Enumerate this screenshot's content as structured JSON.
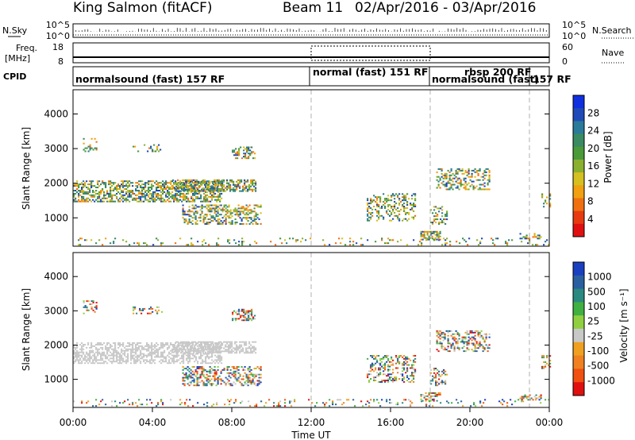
{
  "header": {
    "radar": "King Salmon (fitACF)",
    "beam": "Beam 11",
    "dates": "02/Apr/2016 - 03/Apr/2016"
  },
  "status_panel": {
    "nsky_label": "N.Sky",
    "nsky_ticks": [
      "10^5",
      "10^0"
    ],
    "nsearch_label": "N.Search",
    "nsearch_ticks": [
      "10^5",
      "10^0"
    ],
    "freq_label_1": "Freq.",
    "freq_label_2": "[MHz]",
    "freq_ticks": [
      "18",
      "8"
    ],
    "nave_label": "Nave",
    "nave_ticks": [
      "60",
      "0"
    ],
    "cpid_label": "CPID",
    "modes": [
      {
        "text": "normalsound (fast) 157 RF",
        "start_hour": 0
      },
      {
        "text": "normal (fast) 151 RF",
        "start_hour": 12
      },
      {
        "text": "rbsp 200 RF",
        "start_hour": 18
      },
      {
        "text": "normalsound (fast)",
        "start_hour": 18
      },
      {
        "text": "157 RF",
        "start_hour": 23
      }
    ]
  },
  "chart_data": [
    {
      "type": "heatmap",
      "parameter": "power",
      "ylabel": "Slant Range [km]",
      "xlabel": "Time UT",
      "x_range_hours": [
        0,
        24
      ],
      "ylim": [
        180,
        4700
      ],
      "y_ticks": [
        "1000",
        "2000",
        "3000",
        "4000"
      ],
      "x_ticks": [
        "00:00",
        "04:00",
        "08:00",
        "12:00",
        "16:00",
        "20:00",
        "00:00"
      ],
      "colorbar": {
        "label": "Power [dB]",
        "ticks": [
          "28",
          "24",
          "20",
          "16",
          "12",
          "8",
          "4"
        ],
        "colors": [
          "#1030e0",
          "#204ab8",
          "#2a7a9a",
          "#3a8a62",
          "#4a9a3a",
          "#8ab030",
          "#d4c020",
          "#f0a010",
          "#f07010",
          "#e83a10",
          "#e01010"
        ]
      },
      "mode_change_hours": [
        12,
        18,
        23
      ]
    },
    {
      "type": "heatmap",
      "parameter": "velocity",
      "ylabel": "Slant Range [km]",
      "xlabel": "Time UT",
      "x_range_hours": [
        0,
        24
      ],
      "ylim": [
        180,
        4700
      ],
      "y_ticks": [
        "1000",
        "2000",
        "3000",
        "4000"
      ],
      "x_ticks": [
        "00:00",
        "04:00",
        "08:00",
        "12:00",
        "16:00",
        "20:00",
        "00:00"
      ],
      "colorbar": {
        "label": "Velocity [m s⁻¹]",
        "ticks": [
          "1000",
          "500",
          "100",
          "25",
          "-25",
          "-100",
          "-500",
          "-1000"
        ],
        "colors": [
          "#1a40c0",
          "#2a60a0",
          "#2a8a80",
          "#40b040",
          "#90d040",
          "#c8c8c8",
          "#f0a020",
          "#f08020",
          "#f05010",
          "#e01010"
        ]
      },
      "mode_change_hours": [
        12,
        18,
        23
      ]
    }
  ]
}
